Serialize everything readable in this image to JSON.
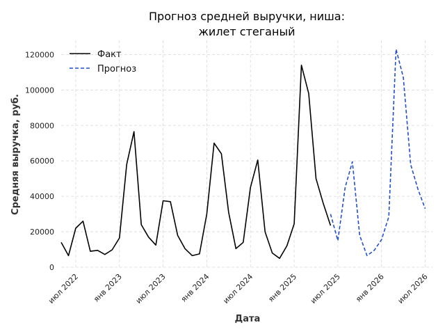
{
  "chart_data": {
    "type": "line",
    "title_lines": [
      "Прогноз средней выручки, ниша:",
      "жилет стеганый"
    ],
    "xlabel": "Дата",
    "ylabel": "Средняя выручка, руб.",
    "x_ticks": [
      {
        "date": "2022-07",
        "label": "июл 2022"
      },
      {
        "date": "2023-01",
        "label": "янв 2023"
      },
      {
        "date": "2023-07",
        "label": "июл 2023"
      },
      {
        "date": "2024-01",
        "label": "янв 2024"
      },
      {
        "date": "2024-07",
        "label": "июл 2024"
      },
      {
        "date": "2025-01",
        "label": "янв 2025"
      },
      {
        "date": "2025-07",
        "label": "июл 2025"
      },
      {
        "date": "2026-01",
        "label": "янв 2026"
      },
      {
        "date": "2026-07",
        "label": "июл 2026"
      }
    ],
    "y_ticks": [
      {
        "value": 0,
        "label": "0"
      },
      {
        "value": 20000,
        "label": "20000"
      },
      {
        "value": 40000,
        "label": "40000"
      },
      {
        "value": 60000,
        "label": "60000"
      },
      {
        "value": 80000,
        "label": "80000"
      },
      {
        "value": 100000,
        "label": "100000"
      },
      {
        "value": 120000,
        "label": "120000"
      }
    ],
    "xlim": [
      "2022-05",
      "2026-08"
    ],
    "ylim": [
      0,
      128000
    ],
    "grid": true,
    "legend_position": "top-left",
    "series": [
      {
        "name": "Факт",
        "color": "#000000",
        "style": "solid",
        "x": [
          "2022-05",
          "2022-06",
          "2022-07",
          "2022-08",
          "2022-09",
          "2022-10",
          "2022-11",
          "2022-12",
          "2023-01",
          "2023-02",
          "2023-03",
          "2023-04",
          "2023-05",
          "2023-06",
          "2023-07",
          "2023-08",
          "2023-09",
          "2023-10",
          "2023-11",
          "2023-12",
          "2024-01",
          "2024-02",
          "2024-03",
          "2024-04",
          "2024-05",
          "2024-06",
          "2024-07",
          "2024-08",
          "2024-09",
          "2024-10",
          "2024-11",
          "2024-12",
          "2025-01",
          "2025-02",
          "2025-03",
          "2025-04",
          "2025-05",
          "2025-06"
        ],
        "values": [
          14000,
          6500,
          22000,
          26000,
          9000,
          9500,
          7200,
          9800,
          16500,
          58000,
          76500,
          24000,
          17000,
          12500,
          37500,
          37000,
          18000,
          10500,
          6500,
          7500,
          30000,
          70000,
          64000,
          31000,
          10500,
          14000,
          45000,
          60500,
          20000,
          8000,
          5000,
          12000,
          24500,
          114000,
          98000,
          50000,
          36000,
          23500
        ]
      },
      {
        "name": "Прогноз",
        "color": "#1f4fd1",
        "style": "dashed",
        "x": [
          "2025-06",
          "2025-07",
          "2025-08",
          "2025-09",
          "2025-10",
          "2025-11",
          "2025-12",
          "2026-01",
          "2026-02",
          "2026-03",
          "2026-04",
          "2026-05",
          "2026-06",
          "2026-07"
        ],
        "values": [
          30000,
          15000,
          45000,
          59500,
          18000,
          6500,
          9500,
          15500,
          28500,
          123000,
          107000,
          58000,
          44000,
          33000
        ]
      }
    ]
  }
}
